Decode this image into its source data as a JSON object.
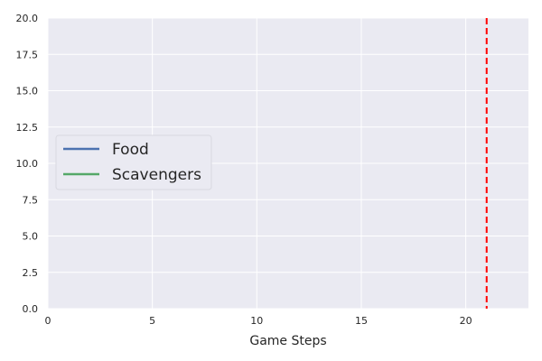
{
  "chart_data": {
    "type": "line",
    "title": "",
    "xlabel": "Game Steps",
    "ylabel": "",
    "xlim": [
      0,
      23
    ],
    "ylim": [
      0,
      20
    ],
    "xticks": [
      0,
      5,
      10,
      15,
      20
    ],
    "xtick_labels": [
      "0",
      "5",
      "10",
      "15",
      "20"
    ],
    "yticks": [
      0,
      2.5,
      5,
      7.5,
      10,
      12.5,
      15,
      17.5,
      20
    ],
    "ytick_labels": [
      "0.0",
      "2.5",
      "5.0",
      "7.5",
      "10.0",
      "12.5",
      "15.0",
      "17.5",
      "20.0"
    ],
    "grid": true,
    "background": "#EAEAF2",
    "legend_position": "center-left",
    "series": [
      {
        "name": "Food",
        "color": "#4C72B0",
        "x": [],
        "y": []
      },
      {
        "name": "Scavengers",
        "color": "#55A868",
        "x": [],
        "y": []
      }
    ],
    "vline": {
      "x": 21,
      "color": "#FF0000",
      "style": "dashed"
    }
  }
}
